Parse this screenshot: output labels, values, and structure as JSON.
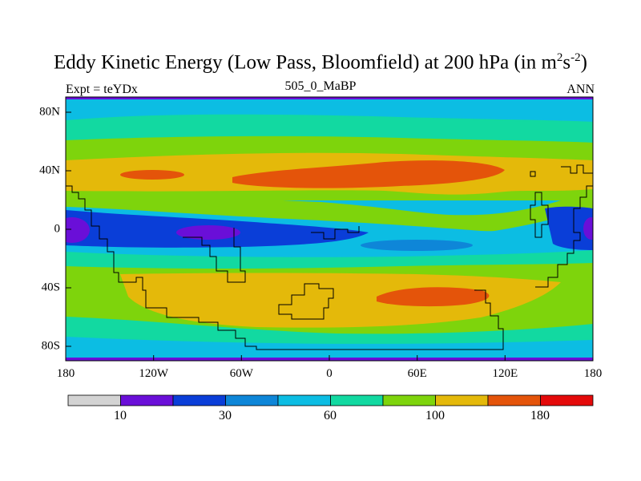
{
  "title": {
    "main": "Eddy Kinetic Energy (Low Pass, Bloomfield) at 200 hPa (in m",
    "sup1": "2",
    "mid": "s",
    "sup2": "-2",
    "end": ")"
  },
  "subtitle": {
    "left": "Expt = teYDx",
    "center": "505_0_MaBP",
    "right": "ANN"
  },
  "axes": {
    "x_ticks": [
      "180",
      "120W",
      "60W",
      "0",
      "60E",
      "120E",
      "180"
    ],
    "y_ticks": [
      "80N",
      "40N",
      "0",
      "40S",
      "80S"
    ]
  },
  "colorbar": {
    "labels": [
      "10",
      "30",
      "60",
      "100",
      "180"
    ],
    "colors": [
      "#d3d3d3",
      "#6a0fd8",
      "#0a3ed8",
      "#0e86d8",
      "#0cbde3",
      "#12d9a1",
      "#7ed40c",
      "#e4b90a",
      "#e4540a",
      "#e40a0a"
    ]
  },
  "map_colors": {
    "band_cyan": "#0cbde3",
    "band_teal": "#12d9a1",
    "band_green": "#7ed40c",
    "band_yellow": "#e4b90a",
    "band_orange": "#e4540a",
    "band_blue": "#0a3ed8",
    "band_midblue": "#0e86d8",
    "band_purple": "#6a0fd8"
  }
}
